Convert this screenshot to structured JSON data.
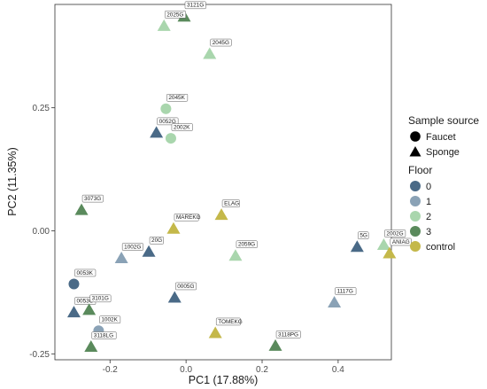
{
  "chart_data": {
    "type": "scatter",
    "xlabel": "PC1 (17.88%)",
    "ylabel": "PC2 (11.35%)",
    "xlim": [
      -0.345,
      0.54
    ],
    "ylim": [
      -0.262,
      0.46
    ],
    "x_ticks": [
      {
        "value": -0.2,
        "label": "-0.2"
      },
      {
        "value": 0.0,
        "label": "0.0"
      },
      {
        "value": 0.2,
        "label": "0.2"
      },
      {
        "value": 0.4,
        "label": "0.4"
      }
    ],
    "y_ticks": [
      {
        "value": -0.25,
        "label": "-0.25"
      },
      {
        "value": 0.0,
        "label": "0.00"
      },
      {
        "value": 0.25,
        "label": "0.25"
      }
    ],
    "grid": false,
    "legend_position": "right",
    "shape_legend": {
      "title": "Sample source",
      "items": [
        {
          "label": "Faucet",
          "shape": "circle"
        },
        {
          "label": "Sponge",
          "shape": "triangle"
        }
      ]
    },
    "color_legend": {
      "title": "Floor",
      "items": [
        {
          "label": "0",
          "color": "#4a6a87"
        },
        {
          "label": "1",
          "color": "#8aa2b6"
        },
        {
          "label": "2",
          "color": "#a9d6ad"
        },
        {
          "label": "3",
          "color": "#5a8a5c"
        },
        {
          "label": "control",
          "color": "#c4b84a"
        }
      ]
    },
    "points": [
      {
        "label": "3121G",
        "x": -0.005,
        "y": 0.436,
        "source": "Sponge",
        "floor": "3"
      },
      {
        "label": "2025G",
        "x": -0.058,
        "y": 0.417,
        "source": "Sponge",
        "floor": "2"
      },
      {
        "label": "2045G",
        "x": 0.062,
        "y": 0.36,
        "source": "Sponge",
        "floor": "2"
      },
      {
        "label": "2045K",
        "x": -0.053,
        "y": 0.248,
        "source": "Faucet",
        "floor": "2"
      },
      {
        "label": "0052G",
        "x": -0.078,
        "y": 0.2,
        "source": "Sponge",
        "floor": "0"
      },
      {
        "label": "2002K",
        "x": -0.04,
        "y": 0.188,
        "source": "Faucet",
        "floor": "2"
      },
      {
        "label": "3073G",
        "x": -0.275,
        "y": 0.043,
        "source": "Sponge",
        "floor": "3"
      },
      {
        "label": "MAREKG",
        "x": -0.033,
        "y": 0.005,
        "source": "Sponge",
        "floor": "control"
      },
      {
        "label": "ELAG",
        "x": 0.093,
        "y": 0.033,
        "source": "Sponge",
        "floor": "control"
      },
      {
        "label": "1002G",
        "x": -0.17,
        "y": -0.055,
        "source": "Sponge",
        "floor": "1"
      },
      {
        "label": "20G",
        "x": -0.098,
        "y": -0.042,
        "source": "Sponge",
        "floor": "0"
      },
      {
        "label": "2059G",
        "x": 0.13,
        "y": -0.05,
        "source": "Sponge",
        "floor": "2"
      },
      {
        "label": "5G",
        "x": 0.45,
        "y": -0.032,
        "source": "Sponge",
        "floor": "0"
      },
      {
        "label": "2002G",
        "x": 0.52,
        "y": -0.028,
        "source": "Sponge",
        "floor": "2"
      },
      {
        "label": "ANIAG",
        "x": 0.535,
        "y": -0.045,
        "source": "Sponge",
        "floor": "control"
      },
      {
        "label": "0053K",
        "x": -0.295,
        "y": -0.108,
        "source": "Faucet",
        "floor": "0"
      },
      {
        "label": "0005G",
        "x": -0.03,
        "y": -0.135,
        "source": "Sponge",
        "floor": "0"
      },
      {
        "label": "1117G",
        "x": 0.39,
        "y": -0.145,
        "source": "Sponge",
        "floor": "1"
      },
      {
        "label": "0053G",
        "x": -0.295,
        "y": -0.165,
        "source": "Sponge",
        "floor": "0"
      },
      {
        "label": "3101G",
        "x": -0.255,
        "y": -0.16,
        "source": "Sponge",
        "floor": "3"
      },
      {
        "label": "1002K",
        "x": -0.23,
        "y": -0.203,
        "source": "Faucet",
        "floor": "1"
      },
      {
        "label": "TOMEKG",
        "x": 0.077,
        "y": -0.207,
        "source": "Sponge",
        "floor": "control"
      },
      {
        "label": "3118LG",
        "x": -0.25,
        "y": -0.235,
        "source": "Sponge",
        "floor": "3"
      },
      {
        "label": "3118PG",
        "x": 0.235,
        "y": -0.233,
        "source": "Sponge",
        "floor": "3"
      }
    ]
  }
}
